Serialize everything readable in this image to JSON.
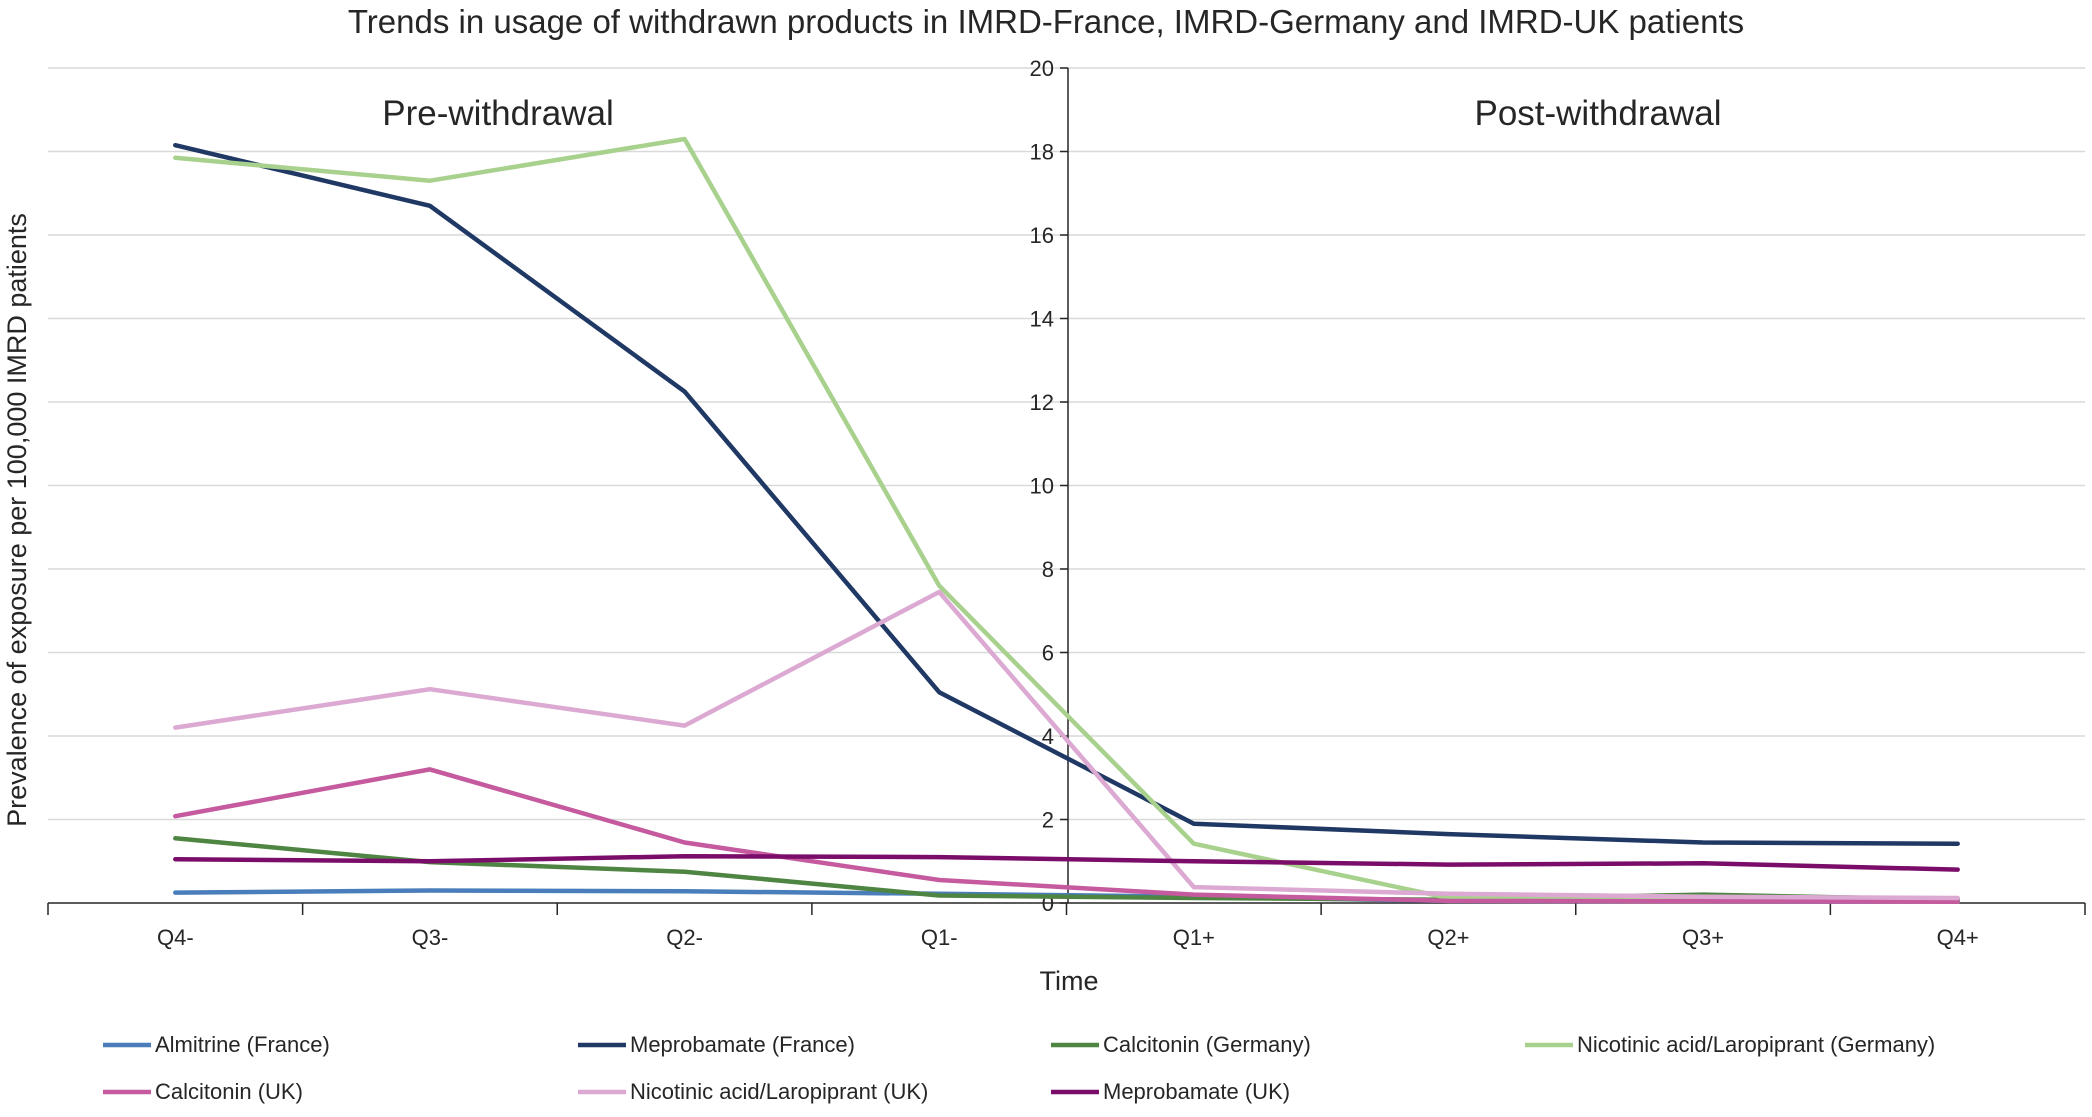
{
  "chart_data": {
    "type": "line",
    "title": "Trends in usage of withdrawn products in IMRD-France, IMRD-Germany and IMRD-UK patients",
    "xlabel": "Time",
    "ylabel": "Prevalence of exposure per 100,000 IMRD patients",
    "regions": [
      "Pre-withdrawal",
      "Post-withdrawal"
    ],
    "categories": [
      "Q4-",
      "Q3-",
      "Q2-",
      "Q1-",
      "Q1+",
      "Q2+",
      "Q3+",
      "Q4+"
    ],
    "ylim": [
      0,
      20
    ],
    "yticks": [
      0,
      2,
      4,
      6,
      8,
      10,
      12,
      14,
      16,
      18,
      20
    ],
    "grid": true,
    "legend_position": "bottom",
    "series": [
      {
        "name": "Almitrine (France)",
        "color": "#4a7ebb",
        "values": [
          0.25,
          0.3,
          0.28,
          0.22,
          0.15,
          0.05,
          0.04,
          0.03
        ]
      },
      {
        "name": "Meprobamate (France)",
        "color": "#1f3864",
        "values": [
          18.15,
          16.7,
          12.25,
          5.05,
          1.9,
          1.65,
          1.45,
          1.42
        ]
      },
      {
        "name": "Calcitonin (Germany)",
        "color": "#4e8542",
        "values": [
          1.55,
          0.98,
          0.75,
          0.18,
          0.12,
          0.08,
          0.2,
          0.08
        ]
      },
      {
        "name": "Nicotinic acid/Laropiprant (Germany)",
        "color": "#a9d18e",
        "values": [
          17.85,
          17.3,
          18.3,
          7.6,
          1.42,
          0.12,
          0.05,
          0.03
        ]
      },
      {
        "name": "Calcitonin (UK)",
        "color": "#c55a9f",
        "values": [
          2.08,
          3.2,
          1.45,
          0.55,
          0.2,
          0.05,
          0.04,
          0.03
        ]
      },
      {
        "name": "Nicotinic acid/Laropiprant (UK)",
        "color": "#dba9d2",
        "values": [
          4.2,
          5.12,
          4.25,
          7.45,
          0.38,
          0.22,
          0.15,
          0.12
        ]
      },
      {
        "name": "Meprobamate (UK)",
        "color": "#7b0d6a",
        "values": [
          1.05,
          1.0,
          1.12,
          1.1,
          1.0,
          0.92,
          0.95,
          0.8
        ]
      }
    ]
  }
}
